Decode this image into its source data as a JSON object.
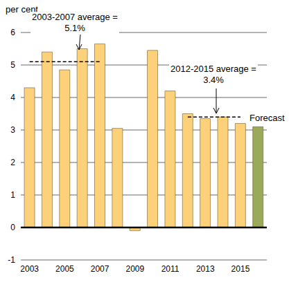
{
  "chart_data": {
    "type": "bar",
    "y_label": "per cent",
    "categories": [
      "2003",
      null,
      "2005",
      null,
      "2007",
      null,
      "2009",
      null,
      "2011",
      null,
      "2013",
      null,
      "2015",
      null
    ],
    "values": [
      4.3,
      5.4,
      4.85,
      5.5,
      5.65,
      3.05,
      -0.1,
      5.45,
      4.2,
      3.5,
      3.35,
      3.4,
      3.2,
      3.1
    ],
    "colors": [
      "#fdd17a",
      "#fdd17a",
      "#fdd17a",
      "#fdd17a",
      "#fdd17a",
      "#fdd17a",
      "#fdd17a",
      "#fdd17a",
      "#fdd17a",
      "#fdd17a",
      "#fdd17a",
      "#fdd17a",
      "#fdd17a",
      "#9aa95a"
    ],
    "ylim": [
      -1,
      6
    ],
    "yticks": [
      -1,
      0,
      1,
      2,
      3,
      4,
      5,
      6
    ],
    "grid": true,
    "averages": [
      {
        "label": "2003-2007 average = 5.1%",
        "value": 5.1,
        "from": 2003,
        "to": 2007
      },
      {
        "label": "2012-2015 average = 3.4%",
        "value": 3.4,
        "from": 2012,
        "to": 2015
      }
    ],
    "annotations": [
      "Forecast"
    ]
  }
}
